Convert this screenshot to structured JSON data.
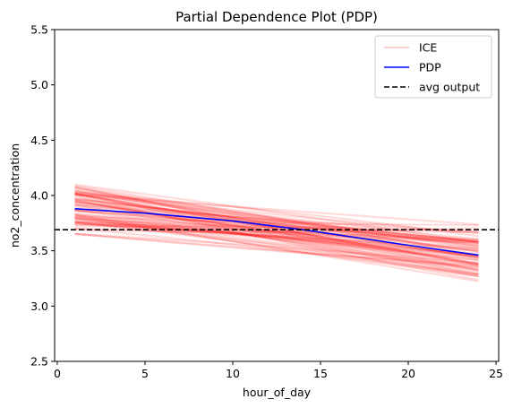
{
  "chart_data": {
    "type": "line",
    "title": "Partial Dependence Plot (PDP)",
    "xlabel": "hour_of_day",
    "ylabel": "no2_concentration",
    "xlim": [
      -0.15,
      25.15
    ],
    "ylim": [
      2.5,
      5.5
    ],
    "xticks": [
      "0",
      "5",
      "10",
      "15",
      "20",
      "25"
    ],
    "xtick_values": [
      0,
      5,
      10,
      15,
      20,
      25
    ],
    "yticks": [
      "2.5",
      "3.0",
      "3.5",
      "4.0",
      "4.5",
      "5.0",
      "5.5"
    ],
    "ytick_values": [
      2.5,
      3.0,
      3.5,
      4.0,
      4.5,
      5.0,
      5.5
    ],
    "grid": false,
    "legend_position": "top-right",
    "series": [
      {
        "name": "ICE",
        "style": "many thin transparent lines (one per sample)",
        "color": "#ff0000",
        "x_range": [
          1,
          24
        ],
        "start_values_range": [
          3.65,
          4.1
        ],
        "end_values_range": [
          3.22,
          3.74
        ],
        "crossing_x": 13.5,
        "crossing_y": 3.7
      },
      {
        "name": "PDP",
        "color": "#0000ff",
        "x": [
          1,
          5,
          10,
          14,
          20,
          24
        ],
        "y": [
          3.88,
          3.84,
          3.77,
          3.69,
          3.55,
          3.46
        ]
      },
      {
        "name": "avg output",
        "style": "dashed horizontal line",
        "color": "#000000",
        "y": 3.69
      }
    ],
    "legend": [
      {
        "label": "ICE",
        "color": "#ffc0c0",
        "dash": false
      },
      {
        "label": "PDP",
        "color": "#0000ff",
        "dash": false
      },
      {
        "label": "avg output",
        "color": "#000000",
        "dash": true
      }
    ]
  }
}
